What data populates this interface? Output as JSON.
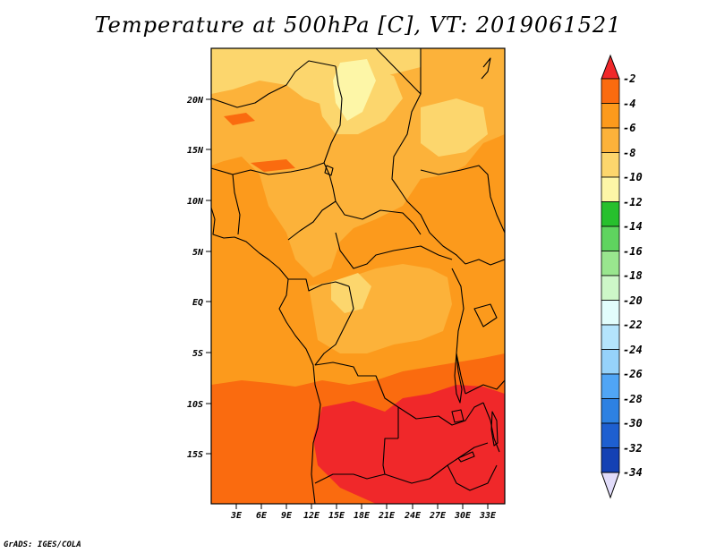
{
  "title": "Temperature at 500hPa [C], VT: 2019061521",
  "credit": "GrADS: IGES/COLA",
  "map": {
    "lat_labels": [
      "20N",
      "15N",
      "10N",
      "5N",
      "EQ",
      "5S",
      "10S",
      "15S"
    ],
    "lon_labels": [
      "3E",
      "6E",
      "9E",
      "12E",
      "15E",
      "18E",
      "21E",
      "24E",
      "27E",
      "30E",
      "33E"
    ]
  },
  "colorbar": {
    "levels": [
      "-2",
      "-4",
      "-6",
      "-8",
      "-10",
      "-12",
      "-14",
      "-16",
      "-18",
      "-20",
      "-22",
      "-24",
      "-26",
      "-28",
      "-30",
      "-32",
      "-34"
    ],
    "colors": [
      "#f0282a",
      "#fa6b0f",
      "#fc9a1c",
      "#fcb23a",
      "#fcd66d",
      "#fdf6a7",
      "#27c02d",
      "#5fd45f",
      "#99e68e",
      "#cdf7c8",
      "#e2fdfc",
      "#b4e4fc",
      "#96d2fa",
      "#50a5f5",
      "#2d81e2",
      "#1e5fd0",
      "#1441b4",
      "#0e0f73",
      "#e1dcfa"
    ]
  },
  "colors": {
    "warmest": "#f0282a",
    "warm": "#fa6b0f",
    "mid": "#fc9a1c",
    "cool": "#fcb23a",
    "coolest_visible": "#fcd66d",
    "palest": "#fdf6a7"
  }
}
